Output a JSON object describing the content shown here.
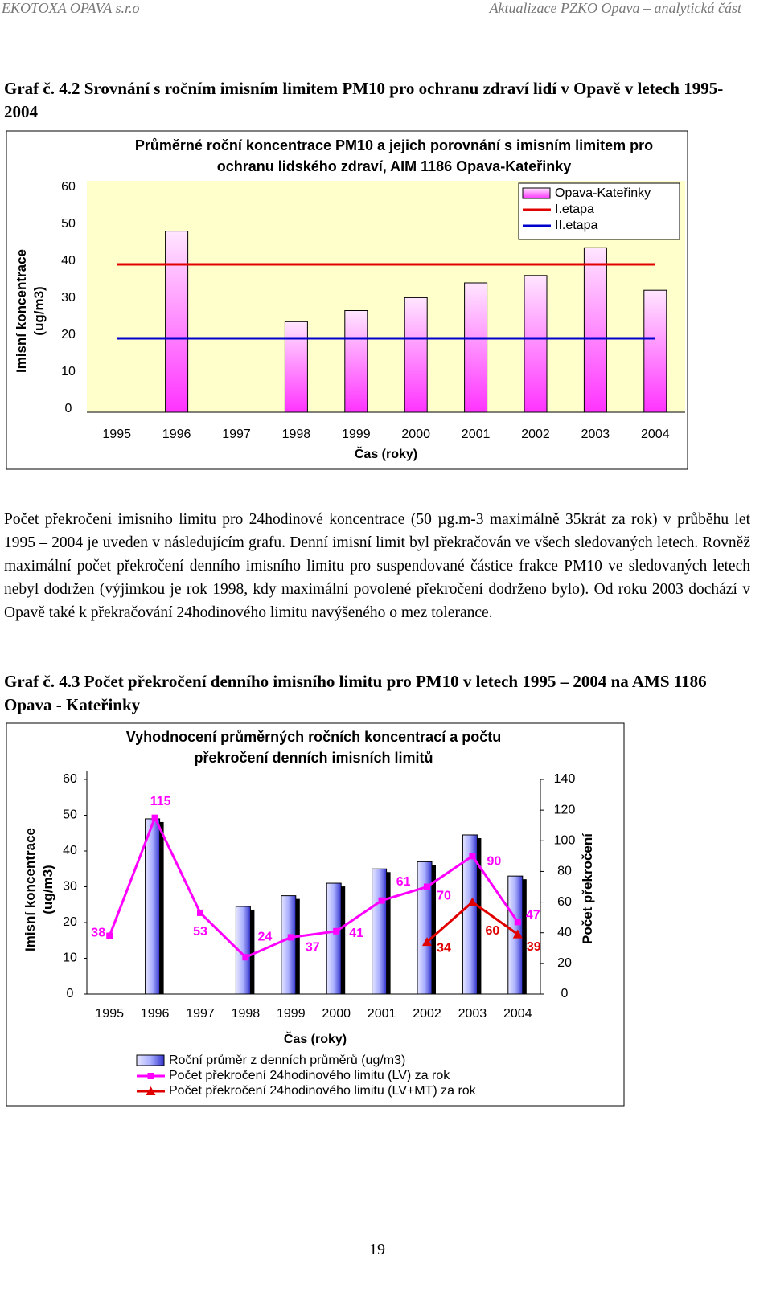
{
  "header": {
    "left": "EKOTOXA OPAVA s.r.o",
    "right": "Aktualizace PZKO Opava – analytická část"
  },
  "caption_1": "Graf č. 4.2 Srovnání s ročním imisním limitem PM10 pro ochranu zdraví lidí v Opavě v letech 1995-2004",
  "paragraph": "Počet překročení imisního limitu pro 24hodinové koncentrace (50 µg.m-3 maximálně 35krát za rok) v průběhu let 1995 – 2004 je uveden v následujícím grafu. Denní imisní limit byl překračován ve všech sledovaných letech. Rovněž maximální počet překročení denního imisního limitu pro suspendované částice frakce PM10 ve sledovaných letech nebyl dodržen (výjimkou je rok 1998, kdy maximální povolené překročení dodrženo bylo). Od roku 2003 dochází v Opavě také k překračování 24hodinového limitu navýšeného o mez tolerance.",
  "caption_2": "Graf č. 4.3 Počet překročení denního imisního limitu pro PM10 v letech 1995 – 2004 na AMS 1186 Opava - Kateřinky",
  "page_number": "19",
  "chart_data": [
    {
      "type": "bar",
      "title": "Průměrné roční koncentrace PM10 a jejich porovnání s imisním limitem pro ochranu lidského zdraví, AIM 1186 Opava-Kateřinky",
      "x_label": "Čas (roky)",
      "y_label": "Imisní koncentrace (ug/m3)",
      "categories": [
        "1995",
        "1996",
        "1997",
        "1998",
        "1999",
        "2000",
        "2001",
        "2002",
        "2003",
        "2004"
      ],
      "series": [
        {
          "name": "Opava-Kateřinky",
          "type": "bar",
          "color": "#ff33ff",
          "values": [
            null,
            49,
            null,
            24.5,
            27.5,
            31,
            35,
            37,
            44.5,
            33
          ]
        },
        {
          "name": "I.etapa",
          "type": "line",
          "color": "#e00000",
          "values": [
            40,
            40,
            40,
            40,
            40,
            40,
            40,
            40,
            40,
            40
          ]
        },
        {
          "name": "II.etapa",
          "type": "line",
          "color": "#0000cc",
          "values": [
            20,
            20,
            20,
            20,
            20,
            20,
            20,
            20,
            20,
            20
          ]
        }
      ],
      "ylim": [
        0,
        60
      ],
      "yticks": [
        0,
        10,
        20,
        30,
        40,
        50,
        60
      ],
      "legend": "top-right"
    },
    {
      "type": "bar",
      "title": "Vyhodnocení průměrných ročních koncentrací a počtu překročení denních imisních limitů",
      "x_label": "Čas (roky)",
      "y_label": "Imisní koncentrace (ug/m3)",
      "y2_label": "Počet překročení",
      "categories": [
        "1995",
        "1996",
        "1997",
        "1998",
        "1999",
        "2000",
        "2001",
        "2002",
        "2003",
        "2004"
      ],
      "series": [
        {
          "name": "Roční průměr z denních průměrů (ug/m3)",
          "type": "bar",
          "color": "#3333cc",
          "values": [
            null,
            49,
            null,
            24.5,
            27.5,
            31,
            35,
            37,
            44.5,
            33
          ]
        },
        {
          "name": "Počet překročení 24hodinového limitu (LV) za rok",
          "type": "line",
          "axis": "y2",
          "marker": "square",
          "color": "#ff00ff",
          "values": [
            38,
            115,
            53,
            24,
            37,
            41,
            61,
            70,
            90,
            47
          ]
        },
        {
          "name": "Počet překročení 24hodinového limitu (LV+MT) za rok",
          "type": "line",
          "axis": "y2",
          "marker": "triangle",
          "color": "#e00000",
          "values": [
            null,
            null,
            null,
            null,
            null,
            null,
            null,
            34,
            60,
            39
          ]
        }
      ],
      "ylim": [
        0,
        60
      ],
      "yticks": [
        0,
        10,
        20,
        30,
        40,
        50,
        60
      ],
      "y2lim": [
        0,
        140
      ],
      "y2ticks": [
        0,
        20,
        40,
        60,
        80,
        100,
        120,
        140
      ],
      "legend": "bottom"
    }
  ]
}
